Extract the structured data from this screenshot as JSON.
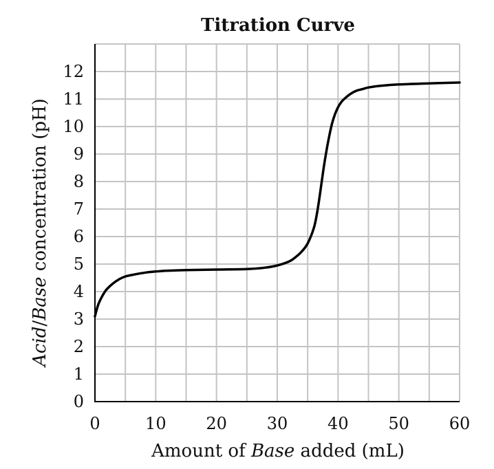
{
  "chart_data": {
    "type": "line",
    "title": "Titration Curve",
    "xlabel_parts": [
      "Amount of ",
      "Base",
      " added (mL)"
    ],
    "ylabel_parts": [
      "Acid",
      "/",
      "Base",
      " concentration (pH)"
    ],
    "xlim": [
      0,
      60
    ],
    "ylim": [
      0,
      13
    ],
    "x_ticks": [
      0,
      10,
      20,
      30,
      40,
      50,
      60
    ],
    "y_ticks": [
      0,
      1,
      2,
      3,
      4,
      5,
      6,
      7,
      8,
      9,
      10,
      11,
      12
    ],
    "x_grid_step": 5,
    "y_grid_step": 1,
    "grid": true,
    "series": [
      {
        "name": "Titration curve",
        "x": [
          0,
          0.5,
          1,
          1.5,
          2,
          3,
          4,
          5,
          6,
          8,
          10,
          12,
          15,
          20,
          25,
          28,
          30,
          32,
          33,
          34,
          35,
          36,
          36.5,
          37,
          37.5,
          38,
          38.5,
          39,
          39.5,
          40,
          40.5,
          41,
          42,
          43,
          44,
          45,
          47,
          50,
          55,
          60
        ],
        "y": [
          3.1,
          3.5,
          3.75,
          3.95,
          4.1,
          4.3,
          4.45,
          4.55,
          4.6,
          4.68,
          4.73,
          4.76,
          4.78,
          4.8,
          4.82,
          4.87,
          4.95,
          5.1,
          5.25,
          5.45,
          5.75,
          6.3,
          6.8,
          7.5,
          8.3,
          9.0,
          9.6,
          10.1,
          10.45,
          10.7,
          10.88,
          11.0,
          11.18,
          11.3,
          11.36,
          11.42,
          11.48,
          11.53,
          11.57,
          11.6
        ]
      }
    ]
  }
}
